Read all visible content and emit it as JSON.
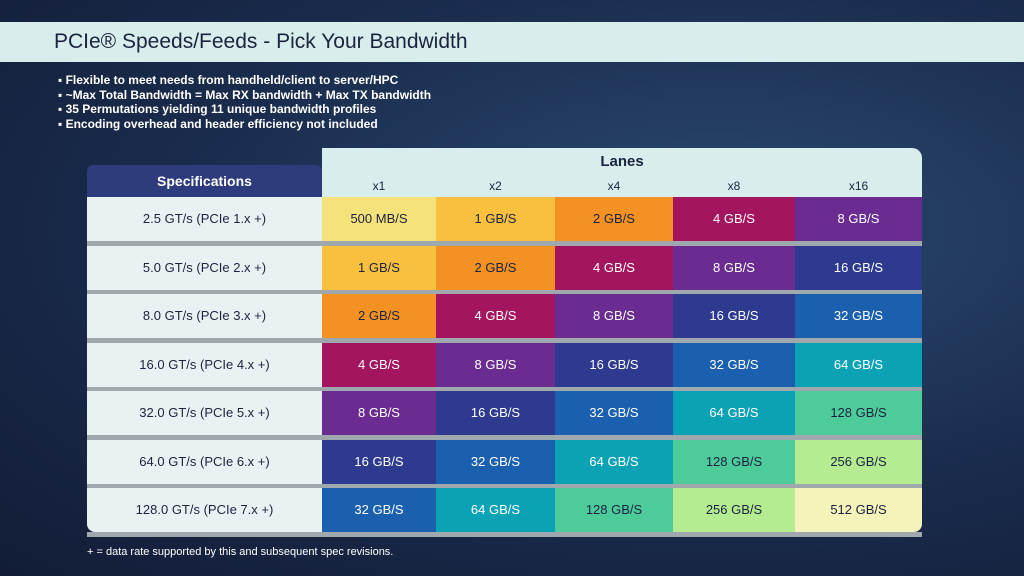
{
  "header": {
    "title": "PCIe® Speeds/Feeds - Pick Your Bandwidth"
  },
  "bullets": [
    "Flexible to meet needs from handheld/client to server/HPC",
    "~Max Total Bandwidth = Max RX bandwidth + Max TX bandwidth",
    "35 Permutations yielding 11 unique bandwidth profiles",
    "Encoding overhead and header efficiency not included"
  ],
  "table": {
    "spec_header": "Specifications",
    "lanes_header": "Lanes",
    "lanes": [
      "x1",
      "x2",
      "x4",
      "x8",
      "x16"
    ],
    "rows": [
      {
        "spec": "2.5 GT/s (PCIe 1.x +)",
        "cells": [
          {
            "text": "500 MB/S",
            "color": "#f6e27a"
          },
          {
            "text": "1 GB/S",
            "color": "#f8c03e"
          },
          {
            "text": "2 GB/S",
            "color": "#f39123"
          },
          {
            "text": "4 GB/S",
            "color": "#a3155e"
          },
          {
            "text": "8 GB/S",
            "color": "#6a2c90"
          }
        ]
      },
      {
        "spec": "5.0 GT/s (PCIe 2.x +)",
        "cells": [
          {
            "text": "1 GB/S",
            "color": "#f8c03e"
          },
          {
            "text": "2 GB/S",
            "color": "#f39123"
          },
          {
            "text": "4 GB/S",
            "color": "#a3155e"
          },
          {
            "text": "8 GB/S",
            "color": "#6a2c90"
          },
          {
            "text": "16 GB/S",
            "color": "#2d3a8f"
          }
        ]
      },
      {
        "spec": "8.0 GT/s (PCIe 3.x +)",
        "cells": [
          {
            "text": "2 GB/S",
            "color": "#f39123"
          },
          {
            "text": "4 GB/S",
            "color": "#a3155e"
          },
          {
            "text": "8 GB/S",
            "color": "#6a2c90"
          },
          {
            "text": "16 GB/S",
            "color": "#2d3a8f"
          },
          {
            "text": "32 GB/S",
            "color": "#1b60ae"
          }
        ]
      },
      {
        "spec": "16.0 GT/s (PCIe 4.x +)",
        "cells": [
          {
            "text": "4 GB/S",
            "color": "#a3155e"
          },
          {
            "text": "8 GB/S",
            "color": "#6a2c90"
          },
          {
            "text": "16 GB/S",
            "color": "#2d3a8f"
          },
          {
            "text": "32 GB/S",
            "color": "#1b60ae"
          },
          {
            "text": "64 GB/S",
            "color": "#0ca2b6"
          }
        ]
      },
      {
        "spec": "32.0 GT/s (PCIe 5.x +)",
        "cells": [
          {
            "text": "8 GB/S",
            "color": "#6a2c90"
          },
          {
            "text": "16 GB/S",
            "color": "#2d3a8f"
          },
          {
            "text": "32 GB/S",
            "color": "#1b60ae"
          },
          {
            "text": "64 GB/S",
            "color": "#0ca2b6"
          },
          {
            "text": "128 GB/S",
            "color": "#4ecb9b"
          }
        ]
      },
      {
        "spec": "64.0 GT/s (PCIe 6.x +)",
        "cells": [
          {
            "text": "16 GB/S",
            "color": "#2d3a8f"
          },
          {
            "text": "32 GB/S",
            "color": "#1b60ae"
          },
          {
            "text": "64 GB/S",
            "color": "#0ca2b6"
          },
          {
            "text": "128 GB/S",
            "color": "#4ecb9b"
          },
          {
            "text": "256 GB/S",
            "color": "#b5ec92"
          }
        ]
      },
      {
        "spec": "128.0 GT/s (PCIe 7.x +)",
        "cells": [
          {
            "text": "32 GB/S",
            "color": "#1b60ae"
          },
          {
            "text": "64 GB/S",
            "color": "#0ca2b6"
          },
          {
            "text": "128 GB/S",
            "color": "#4ecb9b"
          },
          {
            "text": "256 GB/S",
            "color": "#b5ec92"
          },
          {
            "text": "512 GB/S",
            "color": "#f4f3ba"
          }
        ]
      }
    ]
  },
  "footnote": "+ = data rate supported by this and subsequent spec revisions."
}
